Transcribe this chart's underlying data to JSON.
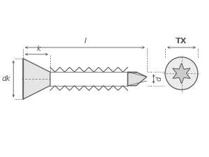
{
  "bg_color": "#ffffff",
  "line_color": "#555555",
  "dim_color": "#555555",
  "label_l": "l",
  "label_k": "k",
  "label_dk": "dk",
  "label_d": "d",
  "label_tx": "TX",
  "figsize": [
    3.0,
    2.25
  ],
  "dpi": 100
}
